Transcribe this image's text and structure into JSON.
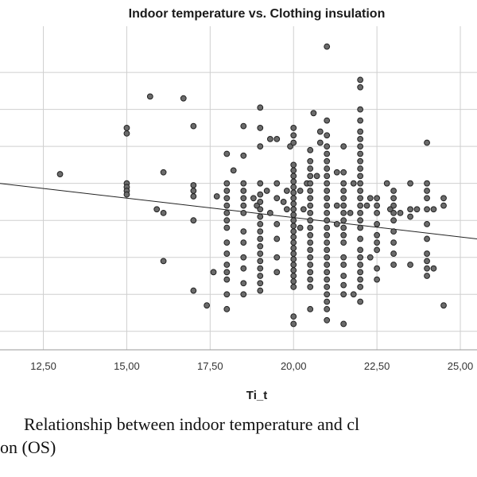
{
  "chart_data": {
    "type": "scatter",
    "title": "Indoor temperature vs. Clothing insulation",
    "xlabel": "Ti_t",
    "ylabel": "",
    "xlim": [
      11.2,
      25.5
    ],
    "ylim": [
      0.2,
      1.95
    ],
    "x_ticks": [
      12.5,
      15.0,
      17.5,
      20.0,
      22.5,
      25.0
    ],
    "x_tick_labels": [
      "12,50",
      "15,00",
      "17,50",
      "20,00",
      "22,50",
      "25,00"
    ],
    "y_gridlines": [
      0.3,
      0.5,
      0.7,
      0.9,
      1.1,
      1.3,
      1.5,
      1.7
    ],
    "fit_line": {
      "x": [
        11.2,
        25.5
      ],
      "y": [
        1.1,
        0.8
      ]
    },
    "points": [
      [
        13.0,
        1.15
      ],
      [
        15.0,
        1.4
      ],
      [
        15.0,
        1.37
      ],
      [
        15.0,
        1.1
      ],
      [
        15.0,
        1.08
      ],
      [
        15.0,
        1.06
      ],
      [
        15.0,
        1.04
      ],
      [
        15.7,
        1.57
      ],
      [
        15.9,
        0.96
      ],
      [
        16.1,
        1.16
      ],
      [
        16.1,
        0.94
      ],
      [
        16.1,
        0.68
      ],
      [
        16.7,
        1.56
      ],
      [
        17.0,
        1.41
      ],
      [
        17.0,
        1.09
      ],
      [
        17.0,
        1.06
      ],
      [
        17.0,
        1.03
      ],
      [
        17.0,
        0.9
      ],
      [
        17.0,
        0.52
      ],
      [
        17.4,
        0.44
      ],
      [
        17.6,
        0.62
      ],
      [
        17.7,
        1.03
      ],
      [
        18.0,
        1.26
      ],
      [
        18.0,
        1.1
      ],
      [
        18.0,
        1.06
      ],
      [
        18.0,
        1.02
      ],
      [
        18.0,
        0.98
      ],
      [
        18.0,
        0.94
      ],
      [
        18.0,
        0.9
      ],
      [
        18.0,
        0.86
      ],
      [
        18.0,
        0.78
      ],
      [
        18.0,
        0.72
      ],
      [
        18.0,
        0.66
      ],
      [
        18.0,
        0.62
      ],
      [
        18.0,
        0.58
      ],
      [
        18.0,
        0.5
      ],
      [
        18.0,
        0.42
      ],
      [
        18.5,
        1.41
      ],
      [
        18.5,
        1.25
      ],
      [
        18.5,
        1.1
      ],
      [
        18.5,
        1.06
      ],
      [
        18.5,
        1.02
      ],
      [
        18.5,
        0.98
      ],
      [
        18.5,
        0.94
      ],
      [
        18.5,
        0.84
      ],
      [
        18.5,
        0.78
      ],
      [
        18.5,
        0.7
      ],
      [
        18.5,
        0.64
      ],
      [
        18.5,
        0.56
      ],
      [
        18.5,
        0.5
      ],
      [
        18.2,
        1.17
      ],
      [
        18.8,
        1.02
      ],
      [
        18.9,
        0.98
      ],
      [
        19.0,
        1.51
      ],
      [
        19.0,
        1.4
      ],
      [
        19.0,
        1.3
      ],
      [
        19.0,
        1.1
      ],
      [
        19.0,
        1.04
      ],
      [
        19.0,
        1.0
      ],
      [
        19.0,
        0.96
      ],
      [
        19.0,
        0.92
      ],
      [
        19.0,
        0.88
      ],
      [
        19.0,
        0.84
      ],
      [
        19.0,
        0.8
      ],
      [
        19.0,
        0.76
      ],
      [
        19.0,
        0.72
      ],
      [
        19.0,
        0.68
      ],
      [
        19.0,
        0.64
      ],
      [
        19.0,
        0.6
      ],
      [
        19.0,
        0.56
      ],
      [
        19.0,
        0.52
      ],
      [
        19.2,
        1.06
      ],
      [
        19.3,
        1.34
      ],
      [
        19.3,
        0.94
      ],
      [
        19.5,
        1.34
      ],
      [
        19.5,
        1.1
      ],
      [
        19.5,
        1.02
      ],
      [
        19.5,
        0.88
      ],
      [
        19.5,
        0.8
      ],
      [
        19.5,
        0.7
      ],
      [
        19.5,
        0.62
      ],
      [
        19.7,
        1.0
      ],
      [
        19.8,
        1.06
      ],
      [
        19.8,
        0.96
      ],
      [
        19.9,
        1.3
      ],
      [
        20.0,
        1.4
      ],
      [
        20.0,
        1.36
      ],
      [
        20.0,
        1.32
      ],
      [
        20.0,
        1.2
      ],
      [
        20.0,
        1.17
      ],
      [
        20.0,
        1.14
      ],
      [
        20.0,
        1.11
      ],
      [
        20.0,
        1.08
      ],
      [
        20.0,
        1.05
      ],
      [
        20.0,
        1.02
      ],
      [
        20.0,
        0.99
      ],
      [
        20.0,
        0.96
      ],
      [
        20.0,
        0.93
      ],
      [
        20.0,
        0.9
      ],
      [
        20.0,
        0.87
      ],
      [
        20.0,
        0.84
      ],
      [
        20.0,
        0.81
      ],
      [
        20.0,
        0.78
      ],
      [
        20.0,
        0.75
      ],
      [
        20.0,
        0.72
      ],
      [
        20.0,
        0.69
      ],
      [
        20.0,
        0.66
      ],
      [
        20.0,
        0.63
      ],
      [
        20.0,
        0.6
      ],
      [
        20.0,
        0.57
      ],
      [
        20.0,
        0.54
      ],
      [
        20.0,
        0.38
      ],
      [
        20.0,
        0.34
      ],
      [
        20.2,
        1.06
      ],
      [
        20.2,
        0.86
      ],
      [
        20.3,
        0.96
      ],
      [
        20.4,
        1.1
      ],
      [
        20.5,
        1.28
      ],
      [
        20.5,
        1.22
      ],
      [
        20.5,
        1.18
      ],
      [
        20.5,
        1.14
      ],
      [
        20.5,
        1.1
      ],
      [
        20.5,
        1.06
      ],
      [
        20.5,
        1.02
      ],
      [
        20.5,
        0.98
      ],
      [
        20.5,
        0.94
      ],
      [
        20.5,
        0.9
      ],
      [
        20.5,
        0.86
      ],
      [
        20.5,
        0.82
      ],
      [
        20.5,
        0.78
      ],
      [
        20.5,
        0.74
      ],
      [
        20.5,
        0.7
      ],
      [
        20.5,
        0.66
      ],
      [
        20.5,
        0.62
      ],
      [
        20.5,
        0.58
      ],
      [
        20.5,
        0.54
      ],
      [
        20.5,
        0.42
      ],
      [
        20.7,
        1.14
      ],
      [
        20.8,
        1.38
      ],
      [
        20.8,
        1.32
      ],
      [
        20.6,
        1.48
      ],
      [
        21.0,
        1.84
      ],
      [
        21.0,
        1.44
      ],
      [
        21.0,
        1.36
      ],
      [
        21.0,
        1.3
      ],
      [
        21.0,
        1.26
      ],
      [
        21.0,
        1.22
      ],
      [
        21.0,
        1.18
      ],
      [
        21.0,
        1.14
      ],
      [
        21.0,
        1.1
      ],
      [
        21.0,
        1.06
      ],
      [
        21.0,
        1.02
      ],
      [
        21.0,
        0.98
      ],
      [
        21.0,
        0.94
      ],
      [
        21.0,
        0.9
      ],
      [
        21.0,
        0.86
      ],
      [
        21.0,
        0.82
      ],
      [
        21.0,
        0.78
      ],
      [
        21.0,
        0.74
      ],
      [
        21.0,
        0.7
      ],
      [
        21.0,
        0.66
      ],
      [
        21.0,
        0.62
      ],
      [
        21.0,
        0.58
      ],
      [
        21.0,
        0.54
      ],
      [
        21.0,
        0.5
      ],
      [
        21.0,
        0.46
      ],
      [
        21.0,
        0.42
      ],
      [
        21.0,
        0.36
      ],
      [
        21.3,
        1.16
      ],
      [
        21.3,
        0.98
      ],
      [
        21.3,
        0.88
      ],
      [
        21.5,
        1.3
      ],
      [
        21.5,
        1.16
      ],
      [
        21.5,
        1.1
      ],
      [
        21.5,
        1.06
      ],
      [
        21.5,
        1.02
      ],
      [
        21.5,
        0.98
      ],
      [
        21.5,
        0.94
      ],
      [
        21.5,
        0.9
      ],
      [
        21.5,
        0.86
      ],
      [
        21.5,
        0.82
      ],
      [
        21.5,
        0.78
      ],
      [
        21.5,
        0.7
      ],
      [
        21.5,
        0.66
      ],
      [
        21.5,
        0.6
      ],
      [
        21.5,
        0.55
      ],
      [
        21.5,
        0.5
      ],
      [
        21.5,
        0.34
      ],
      [
        21.7,
        0.94
      ],
      [
        21.8,
        1.1
      ],
      [
        21.8,
        0.5
      ],
      [
        22.0,
        1.66
      ],
      [
        22.0,
        1.62
      ],
      [
        22.0,
        1.5
      ],
      [
        22.0,
        1.44
      ],
      [
        22.0,
        1.38
      ],
      [
        22.0,
        1.34
      ],
      [
        22.0,
        1.3
      ],
      [
        22.0,
        1.26
      ],
      [
        22.0,
        1.22
      ],
      [
        22.0,
        1.18
      ],
      [
        22.0,
        1.14
      ],
      [
        22.0,
        1.1
      ],
      [
        22.0,
        1.06
      ],
      [
        22.0,
        1.02
      ],
      [
        22.0,
        0.98
      ],
      [
        22.0,
        0.94
      ],
      [
        22.0,
        0.9
      ],
      [
        22.0,
        0.86
      ],
      [
        22.0,
        0.8
      ],
      [
        22.0,
        0.74
      ],
      [
        22.0,
        0.7
      ],
      [
        22.0,
        0.66
      ],
      [
        22.0,
        0.62
      ],
      [
        22.0,
        0.58
      ],
      [
        22.0,
        0.54
      ],
      [
        22.0,
        0.46
      ],
      [
        22.2,
        0.98
      ],
      [
        22.3,
        1.02
      ],
      [
        22.3,
        0.7
      ],
      [
        22.5,
        1.02
      ],
      [
        22.5,
        0.98
      ],
      [
        22.5,
        0.94
      ],
      [
        22.5,
        0.88
      ],
      [
        22.5,
        0.82
      ],
      [
        22.5,
        0.78
      ],
      [
        22.5,
        0.74
      ],
      [
        22.5,
        0.64
      ],
      [
        22.5,
        0.58
      ],
      [
        22.8,
        1.1
      ],
      [
        22.9,
        0.96
      ],
      [
        23.0,
        1.06
      ],
      [
        23.0,
        1.02
      ],
      [
        23.0,
        0.98
      ],
      [
        23.0,
        0.94
      ],
      [
        23.0,
        0.9
      ],
      [
        23.0,
        0.84
      ],
      [
        23.0,
        0.78
      ],
      [
        23.0,
        0.72
      ],
      [
        23.0,
        0.66
      ],
      [
        23.2,
        0.94
      ],
      [
        23.5,
        1.1
      ],
      [
        23.5,
        0.96
      ],
      [
        23.5,
        0.92
      ],
      [
        23.5,
        0.66
      ],
      [
        23.7,
        0.96
      ],
      [
        24.0,
        1.32
      ],
      [
        24.0,
        1.1
      ],
      [
        24.0,
        1.06
      ],
      [
        24.0,
        1.02
      ],
      [
        24.0,
        0.96
      ],
      [
        24.0,
        0.88
      ],
      [
        24.0,
        0.8
      ],
      [
        24.0,
        0.72
      ],
      [
        24.0,
        0.68
      ],
      [
        24.0,
        0.64
      ],
      [
        24.0,
        0.6
      ],
      [
        24.2,
        0.96
      ],
      [
        24.2,
        0.64
      ],
      [
        24.5,
        1.02
      ],
      [
        24.5,
        0.98
      ],
      [
        24.5,
        0.44
      ]
    ]
  },
  "caption": {
    "line1": "Relationship between indoor temperature and cl",
    "line2": "on (OS)"
  }
}
